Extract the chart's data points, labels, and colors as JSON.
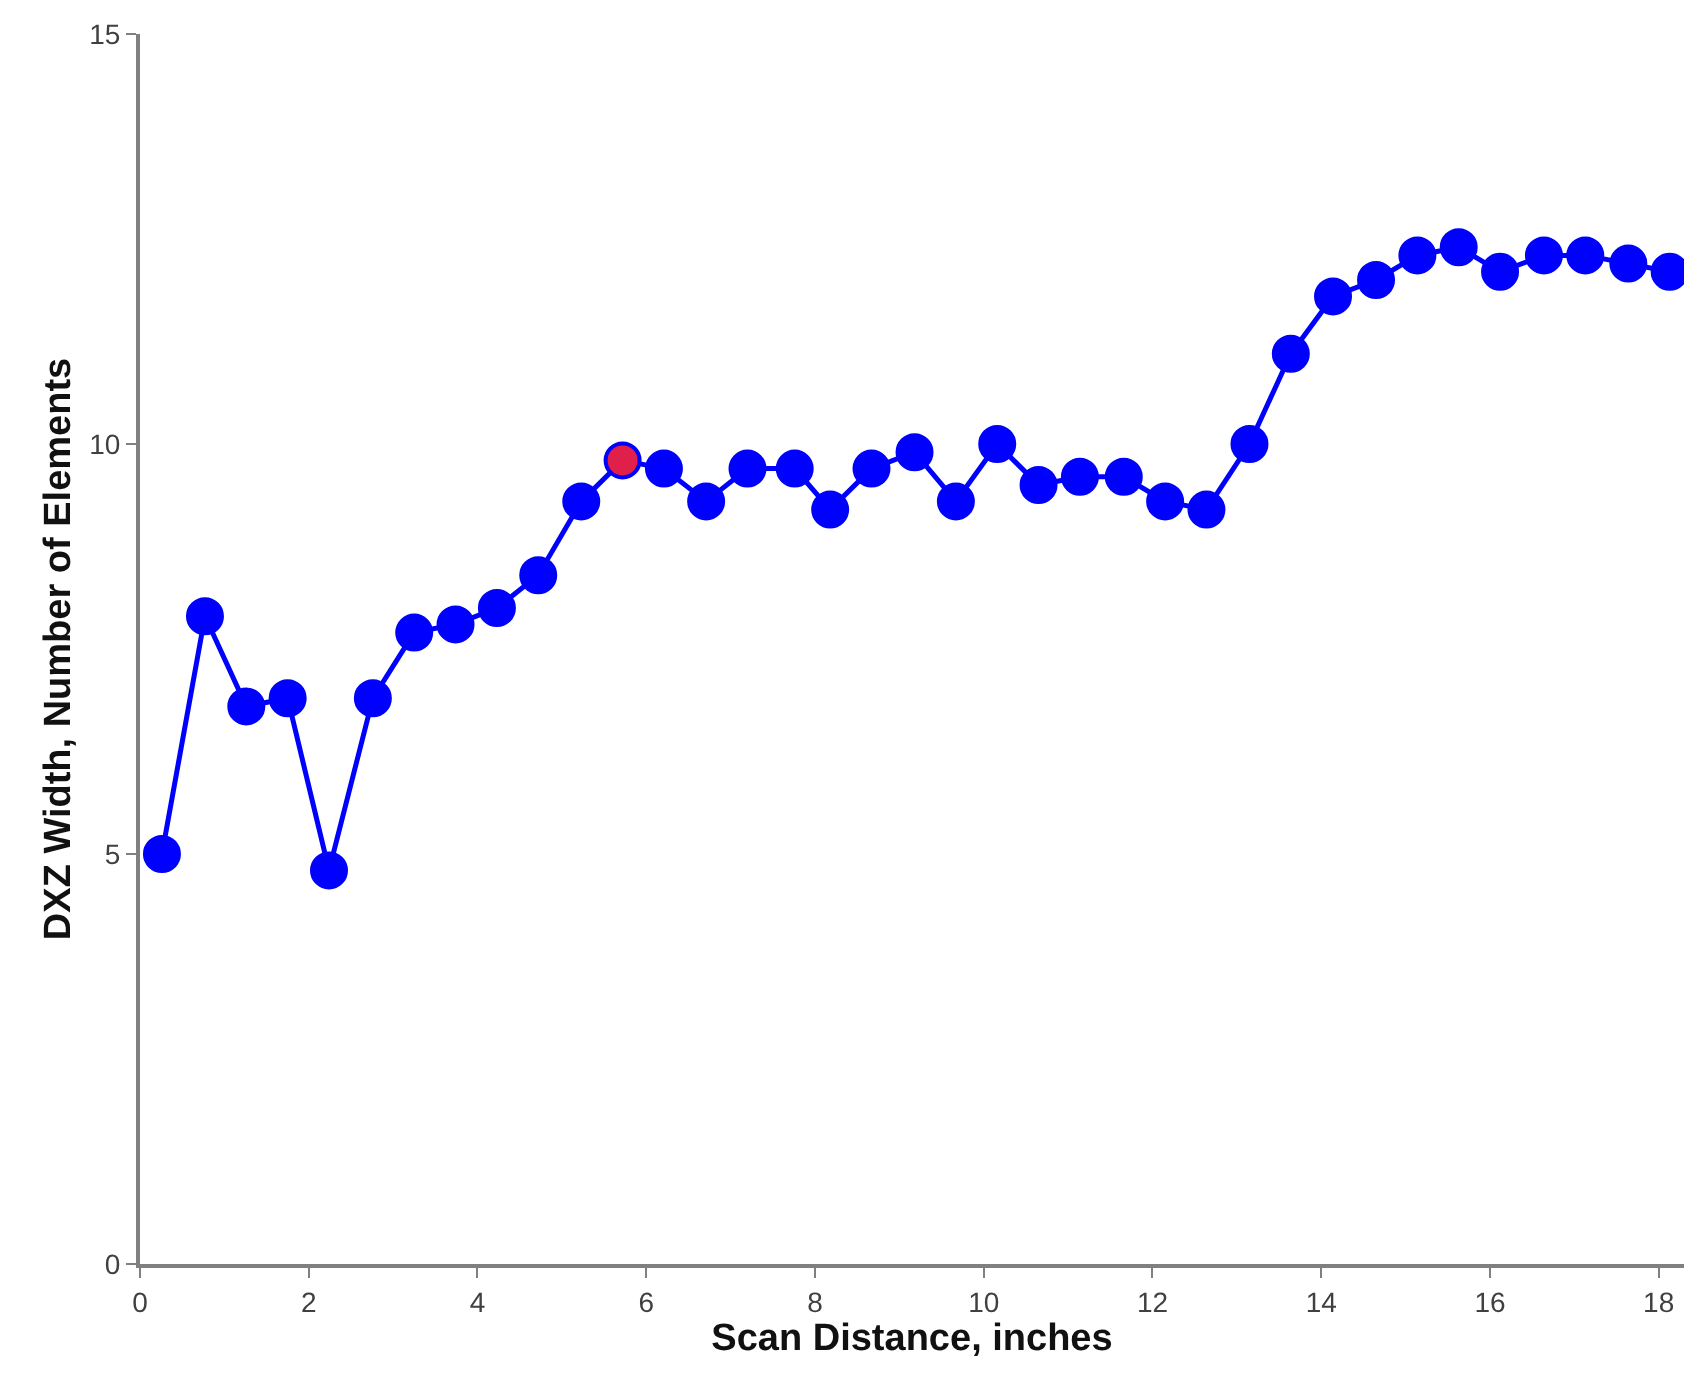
{
  "chart_data": {
    "type": "line",
    "xlabel": "Scan Distance, inches",
    "ylabel": "DXZ Width, Number of Elements",
    "x": [
      0.26,
      0.77,
      1.26,
      1.75,
      2.24,
      2.76,
      3.25,
      3.74,
      4.23,
      4.72,
      5.23,
      5.72,
      6.21,
      6.71,
      7.2,
      7.76,
      8.18,
      8.67,
      9.18,
      9.67,
      10.16,
      10.65,
      11.14,
      11.66,
      12.15,
      12.64,
      13.15,
      13.64,
      14.14,
      14.65,
      15.14,
      15.63,
      16.12,
      16.64,
      17.13,
      17.64,
      18.13
    ],
    "series": [
      {
        "color": "#0000ff",
        "colors": [
          "#0000ff",
          "#0000ff",
          "#0000ff",
          "#0000ff",
          "#0000ff",
          "#0000ff",
          "#0000ff",
          "#0000ff",
          "#0000ff",
          "#0000ff",
          "#0000ff",
          "#e0204a",
          "#0000ff",
          "#0000ff",
          "#0000ff",
          "#0000ff",
          "#0000ff",
          "#0000ff",
          "#0000ff",
          "#0000ff",
          "#0000ff",
          "#0000ff",
          "#0000ff",
          "#0000ff",
          "#0000ff",
          "#0000ff",
          "#0000ff",
          "#0000ff",
          "#0000ff",
          "#0000ff",
          "#0000ff",
          "#0000ff",
          "#0000ff",
          "#0000ff",
          "#0000ff",
          "#0000ff",
          "#0000ff"
        ],
        "values": [
          5.0,
          7.9,
          6.8,
          6.9,
          4.8,
          6.9,
          7.7,
          7.8,
          8.0,
          8.4,
          9.3,
          9.8,
          9.7,
          9.3,
          9.7,
          9.7,
          9.2,
          9.7,
          9.9,
          9.3,
          10.0,
          9.5,
          9.6,
          9.6,
          9.3,
          9.2,
          10.0,
          11.1,
          11.8,
          12.0,
          12.3,
          12.4,
          12.1,
          12.3,
          12.3,
          12.2,
          12.1
        ]
      }
    ],
    "xlim": [
      0,
      18.3
    ],
    "xticks": [
      0,
      2,
      4,
      6,
      8,
      10,
      12,
      14,
      16,
      18
    ],
    "ylim": [
      0,
      15
    ],
    "yticks": [
      0,
      5,
      10,
      15
    ],
    "grid": false,
    "marker": "circle",
    "line_style": "solid"
  }
}
